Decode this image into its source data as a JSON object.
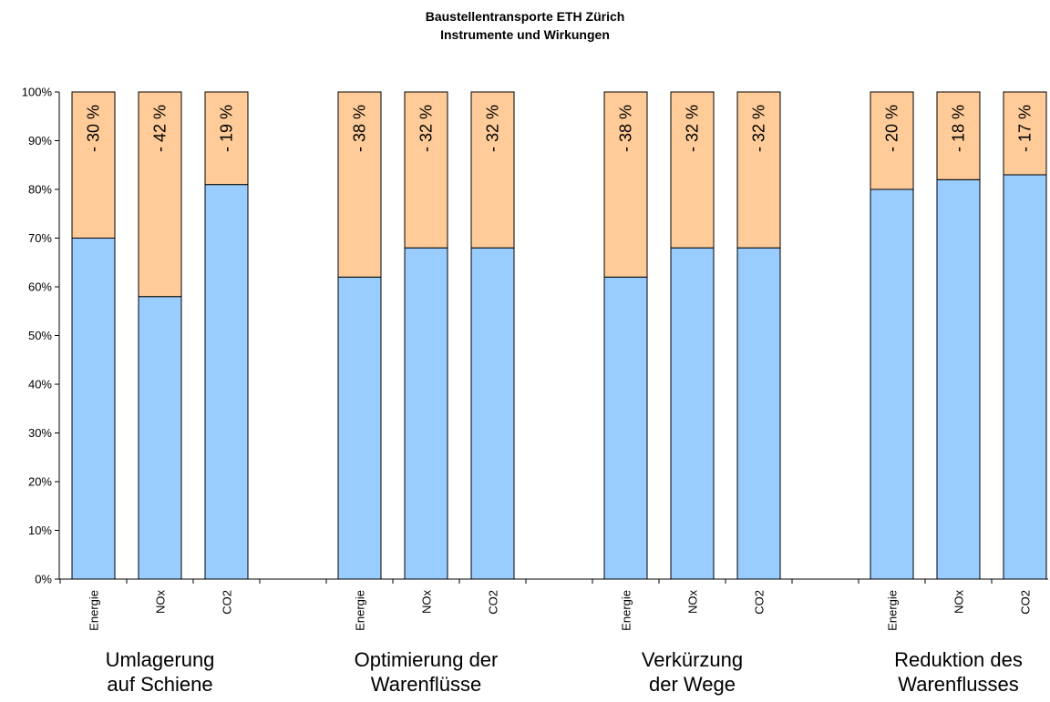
{
  "title_line1": "Baustellentransporte ETH Zürich",
  "title_line2": "Instrumente und Wirkungen",
  "chart_data": {
    "type": "bar",
    "stacked": true,
    "yticks": [
      "0%",
      "10%",
      "20%",
      "30%",
      "40%",
      "50%",
      "60%",
      "70%",
      "80%",
      "90%",
      "100%"
    ],
    "ylim": [
      0,
      100
    ],
    "grid": false,
    "legend": "none",
    "colors": {
      "remaining": "#99ccff",
      "reduction": "#ffcc99"
    },
    "groups": [
      {
        "label": [
          "Umlagerung",
          "auf Schiene"
        ],
        "bars": [
          {
            "category": "Energie",
            "remaining": 70,
            "reduction": 30,
            "label": "- 30 %"
          },
          {
            "category": "NOx",
            "remaining": 58,
            "reduction": 42,
            "label": "- 42 %"
          },
          {
            "category": "CO2",
            "remaining": 81,
            "reduction": 19,
            "label": "- 19 %"
          }
        ]
      },
      {
        "label": [
          "Optimierung der",
          "Warenflüsse"
        ],
        "bars": [
          {
            "category": "Energie",
            "remaining": 62,
            "reduction": 38,
            "label": "- 38 %"
          },
          {
            "category": "NOx",
            "remaining": 68,
            "reduction": 32,
            "label": "- 32 %"
          },
          {
            "category": "CO2",
            "remaining": 68,
            "reduction": 32,
            "label": "- 32 %"
          }
        ]
      },
      {
        "label": [
          "Verkürzung",
          "der Wege"
        ],
        "bars": [
          {
            "category": "Energie",
            "remaining": 62,
            "reduction": 38,
            "label": "- 38 %"
          },
          {
            "category": "NOx",
            "remaining": 68,
            "reduction": 32,
            "label": "- 32 %"
          },
          {
            "category": "CO2",
            "remaining": 68,
            "reduction": 32,
            "label": "- 32 %"
          }
        ]
      },
      {
        "label": [
          "Reduktion des",
          "Warenflusses"
        ],
        "bars": [
          {
            "category": "Energie",
            "remaining": 80,
            "reduction": 20,
            "label": "- 20 %"
          },
          {
            "category": "NOx",
            "remaining": 82,
            "reduction": 18,
            "label": "- 18 %"
          },
          {
            "category": "CO2",
            "remaining": 83,
            "reduction": 17,
            "label": "- 17 %"
          }
        ]
      }
    ]
  }
}
